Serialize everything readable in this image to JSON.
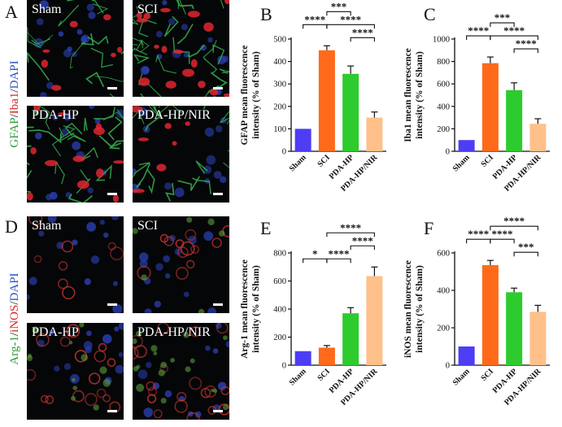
{
  "panels": {
    "A": {
      "letter": "A",
      "stain": [
        {
          "text": "GFAP",
          "color": "#2e9c3a"
        },
        {
          "text": "/",
          "color": "#111111"
        },
        {
          "text": "Iba1",
          "color": "#d42a2a"
        },
        {
          "text": "/",
          "color": "#111111"
        },
        {
          "text": "DAPI",
          "color": "#2b54c9"
        }
      ],
      "images": [
        {
          "label": "Sham",
          "stain": "gfap"
        },
        {
          "label": "SCI",
          "stain": "gfap"
        },
        {
          "label": "PDA-HP",
          "stain": "gfap"
        },
        {
          "label": "PDA-HP/NIR",
          "stain": "gfap"
        }
      ]
    },
    "D": {
      "letter": "D",
      "stain": [
        {
          "text": "Arg-1",
          "color": "#2e9c3a"
        },
        {
          "text": "/",
          "color": "#111111"
        },
        {
          "text": "iNOS",
          "color": "#d42a2a"
        },
        {
          "text": "/",
          "color": "#111111"
        },
        {
          "text": "DAPI",
          "color": "#2b54c9"
        }
      ],
      "images": [
        {
          "label": "Sham",
          "stain": "arg"
        },
        {
          "label": "SCI",
          "stain": "arg"
        },
        {
          "label": "PDA-HP",
          "stain": "arg"
        },
        {
          "label": "PDA-HP/NIR",
          "stain": "arg"
        }
      ]
    }
  },
  "chart_data": [
    {
      "panel": "B",
      "type": "bar",
      "categories": [
        "Sham",
        "SCI",
        "PDA-HP",
        "PDA-HP/NIR"
      ],
      "values": [
        100,
        450,
        345,
        150
      ],
      "errors": [
        0,
        20,
        35,
        25
      ],
      "colors": [
        "#4d3df5",
        "#ff6a1a",
        "#2ecb2e",
        "#ffc08a"
      ],
      "ylabel": [
        "GFAP mean fluorescence",
        "intensity (% of Sham)"
      ],
      "ylim": [
        0,
        500
      ],
      "yticks": [
        "0",
        "100",
        "200",
        "300",
        "400",
        "500"
      ],
      "sig": [
        {
          "a": 1,
          "b": 2,
          "label": "***",
          "level": 3
        },
        {
          "a": 0,
          "b": 1,
          "label": "****",
          "level": 2
        },
        {
          "a": 1,
          "b": 3,
          "label": "****",
          "level": 2
        },
        {
          "a": 2,
          "b": 3,
          "label": "****",
          "level": 1
        }
      ]
    },
    {
      "panel": "C",
      "type": "bar",
      "categories": [
        "Sham",
        "SCI",
        "PDA-HP",
        "PDA-HP/NIR"
      ],
      "values": [
        100,
        785,
        545,
        245
      ],
      "errors": [
        0,
        55,
        65,
        45
      ],
      "colors": [
        "#4d3df5",
        "#ff6a1a",
        "#2ecb2e",
        "#ffc08a"
      ],
      "ylabel": [
        "Iba1 mean fluorescence",
        "intensity (% of Sham)"
      ],
      "ylim": [
        0,
        1000
      ],
      "yticks": [
        "0",
        "200",
        "400",
        "600",
        "800",
        "1000"
      ],
      "sig": [
        {
          "a": 1,
          "b": 2,
          "label": "***",
          "level": 3
        },
        {
          "a": 0,
          "b": 1,
          "label": "****",
          "level": 2
        },
        {
          "a": 1,
          "b": 3,
          "label": "****",
          "level": 2
        },
        {
          "a": 2,
          "b": 3,
          "label": "****",
          "level": 1
        }
      ]
    },
    {
      "panel": "E",
      "type": "bar",
      "categories": [
        "Sham",
        "SCI",
        "PDA-HP",
        "PDA-HP/NIR"
      ],
      "values": [
        100,
        125,
        370,
        635
      ],
      "errors": [
        0,
        15,
        40,
        65
      ],
      "colors": [
        "#4d3df5",
        "#ff6a1a",
        "#2ecb2e",
        "#ffc08a"
      ],
      "ylabel": [
        "Arg-1 mean fluorescence",
        "intensity (% of Sham)"
      ],
      "ylim": [
        0,
        800
      ],
      "yticks": [
        "0",
        "200",
        "400",
        "600",
        "800"
      ],
      "sig": [
        {
          "a": 0,
          "b": 1,
          "label": "*",
          "level": 1
        },
        {
          "a": 1,
          "b": 2,
          "label": "****",
          "level": 1
        },
        {
          "a": 2,
          "b": 3,
          "label": "****",
          "level": 2
        },
        {
          "a": 1,
          "b": 3,
          "label": "****",
          "level": 3
        }
      ]
    },
    {
      "panel": "F",
      "type": "bar",
      "categories": [
        "Sham",
        "SCI",
        "PDA-HP",
        "PDA-HP/NIR"
      ],
      "values": [
        100,
        535,
        390,
        285
      ],
      "errors": [
        0,
        25,
        22,
        35
      ],
      "colors": [
        "#4d3df5",
        "#ff6a1a",
        "#2ecb2e",
        "#ffc08a"
      ],
      "ylabel": [
        "iNOS mean fluorescence",
        "intensity (% of Sham)"
      ],
      "ylim": [
        0,
        600
      ],
      "yticks": [
        "0",
        "200",
        "400",
        "600"
      ],
      "sig": [
        {
          "a": 1,
          "b": 3,
          "label": "****",
          "level": 3
        },
        {
          "a": 0,
          "b": 1,
          "label": "****",
          "level": 2
        },
        {
          "a": 1,
          "b": 2,
          "label": "****",
          "level": 2
        },
        {
          "a": 2,
          "b": 3,
          "label": "***",
          "level": 1
        }
      ]
    }
  ]
}
